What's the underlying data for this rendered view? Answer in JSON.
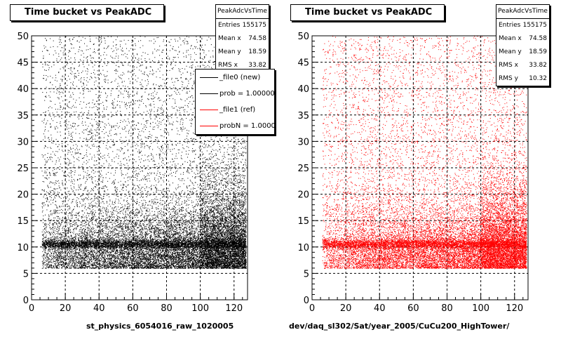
{
  "chart_data": [
    {
      "type": "scatter",
      "title": "Time bucket vs PeakADC",
      "xlabel": "st_physics_6054016_raw_1020005",
      "ylabel": "",
      "xlim": [
        0,
        128
      ],
      "ylim": [
        0,
        50
      ],
      "x_ticks": [
        0,
        20,
        40,
        60,
        80,
        100,
        120
      ],
      "y_ticks": [
        0,
        5,
        10,
        15,
        20,
        25,
        30,
        35,
        40,
        45,
        50
      ],
      "grid": true,
      "marker_color": "#000000",
      "stats": {
        "name": "PeakAdcVsTime",
        "rows": [
          {
            "label": "Entries",
            "value": "155175"
          },
          {
            "label": "Mean x",
            "value": "74.58"
          },
          {
            "label": "Mean y",
            "value": "18.59"
          },
          {
            "label": "RMS x",
            "value": "33.82"
          }
        ]
      },
      "legend": {
        "placement": "right",
        "entries": [
          {
            "label": "_file0 (new)",
            "color": "#000000"
          },
          {
            "label": "prob = 1.000000",
            "color": "#000000"
          },
          {
            "label": "_file1 (ref)",
            "color": "#ff0000"
          },
          {
            "label": "probN = 1.000000",
            "color": "#ff0000"
          }
        ]
      }
    },
    {
      "type": "scatter",
      "title": "Time bucket vs PeakADC",
      "xlabel": "dev/daq_sl302/Sat/year_2005/CuCu200_HighTower/",
      "ylabel": "",
      "xlim": [
        0,
        128
      ],
      "ylim": [
        0,
        50
      ],
      "x_ticks": [
        0,
        20,
        40,
        60,
        80,
        100,
        120
      ],
      "y_ticks": [
        0,
        5,
        10,
        15,
        20,
        25,
        30,
        35,
        40,
        45,
        50
      ],
      "grid": true,
      "marker_color": "#ff0000",
      "stats": {
        "name": "PeakAdcVsTime",
        "rows": [
          {
            "label": "Entries",
            "value": "155175"
          },
          {
            "label": "Mean x",
            "value": "74.58"
          },
          {
            "label": "Mean y",
            "value": "18.59"
          },
          {
            "label": "RMS x",
            "value": "33.82"
          },
          {
            "label": "RMS y",
            "value": "10.32"
          }
        ]
      }
    }
  ]
}
